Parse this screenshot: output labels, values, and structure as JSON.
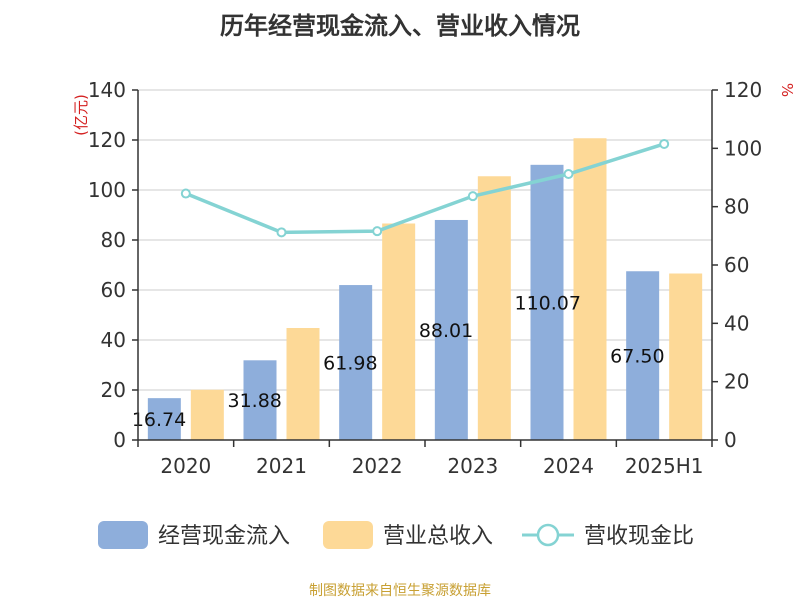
{
  "chart_data": {
    "type": "bar",
    "title": "历年经营现金流入、营业收入情况",
    "categories": [
      "2020",
      "2021",
      "2022",
      "2023",
      "2024",
      "2025H1"
    ],
    "ylabel": "(亿元)",
    "ylabel_right": "%",
    "ylim": [
      0,
      140
    ],
    "ylim_right": [
      0,
      120
    ],
    "yticks": [
      0,
      20,
      40,
      60,
      80,
      100,
      120,
      140
    ],
    "yticks_right": [
      0,
      20,
      40,
      60,
      80,
      100,
      120
    ],
    "grid": true,
    "legend_position": "bottom",
    "series": [
      {
        "name": "经营现金流入",
        "kind": "bar",
        "axis": "left",
        "color": "#8eaedb",
        "values": [
          16.74,
          31.88,
          61.98,
          88.01,
          110.07,
          67.5
        ],
        "labels": [
          "16.74",
          "31.88",
          "61.98",
          "88.01",
          "110.07",
          "67.50"
        ]
      },
      {
        "name": "营业总收入",
        "kind": "bar",
        "axis": "left",
        "color": "#fdd997",
        "values": [
          20.1,
          44.8,
          86.6,
          105.5,
          120.7,
          66.6
        ]
      },
      {
        "name": "营收现金比",
        "kind": "line",
        "axis": "right",
        "color": "#84d3d3",
        "values": [
          84.5,
          71.2,
          71.6,
          83.6,
          91.2,
          101.5
        ]
      }
    ]
  },
  "source": "制图数据来自恒生聚源数据库"
}
